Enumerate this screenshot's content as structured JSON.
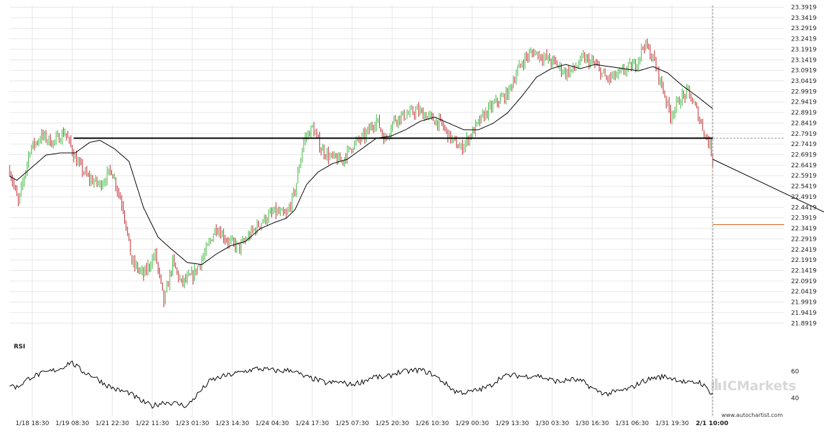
{
  "chart_data": {
    "type": "line",
    "subtype": "candlestick",
    "title": "",
    "xlabel": "",
    "ylabel": "",
    "y_ticks": [
      "23.3919",
      "23.3419",
      "23.2919",
      "23.2419",
      "23.1919",
      "23.1419",
      "23.0919",
      "23.0419",
      "22.9919",
      "22.9419",
      "22.8919",
      "22.8419",
      "22.7919",
      "22.7419",
      "22.6919",
      "22.6419",
      "22.5919",
      "22.5419",
      "22.4919",
      "22.4419",
      "22.3919",
      "22.3419",
      "22.2919",
      "22.2419",
      "22.1919",
      "22.1419",
      "22.0919",
      "22.0419",
      "21.9919",
      "21.9419",
      "21.8919"
    ],
    "x_ticks": [
      "1/18 18:30",
      "1/19 08:30",
      "1/21 22:30",
      "1/22 11:30",
      "1/23 01:30",
      "1/23 14:30",
      "1/24 04:30",
      "1/24 17:30",
      "1/25 07:30",
      "1/25 20:30",
      "1/26 10:30",
      "1/29 00:30",
      "1/29 13:30",
      "1/30 03:30",
      "1/30 16:30",
      "1/31 06:30",
      "1/31 19:30",
      "2/1 10:00"
    ],
    "ylim": [
      21.87,
      23.4
    ],
    "grid": true,
    "price_series": [
      {
        "i": 0,
        "v": 22.62
      },
      {
        "i": 6,
        "v": 22.46
      },
      {
        "i": 14,
        "v": 22.72
      },
      {
        "i": 22,
        "v": 22.78
      },
      {
        "i": 30,
        "v": 22.75
      },
      {
        "i": 38,
        "v": 22.8
      },
      {
        "i": 46,
        "v": 22.66
      },
      {
        "i": 54,
        "v": 22.58
      },
      {
        "i": 62,
        "v": 22.55
      },
      {
        "i": 70,
        "v": 22.62
      },
      {
        "i": 78,
        "v": 22.44
      },
      {
        "i": 84,
        "v": 22.18
      },
      {
        "i": 92,
        "v": 22.12
      },
      {
        "i": 100,
        "v": 22.22
      },
      {
        "i": 106,
        "v": 21.99
      },
      {
        "i": 112,
        "v": 22.18
      },
      {
        "i": 118,
        "v": 22.08
      },
      {
        "i": 126,
        "v": 22.12
      },
      {
        "i": 134,
        "v": 22.22
      },
      {
        "i": 142,
        "v": 22.35
      },
      {
        "i": 150,
        "v": 22.28
      },
      {
        "i": 158,
        "v": 22.25
      },
      {
        "i": 166,
        "v": 22.32
      },
      {
        "i": 174,
        "v": 22.38
      },
      {
        "i": 182,
        "v": 22.42
      },
      {
        "i": 190,
        "v": 22.4
      },
      {
        "i": 196,
        "v": 22.52
      },
      {
        "i": 202,
        "v": 22.76
      },
      {
        "i": 208,
        "v": 22.82
      },
      {
        "i": 214,
        "v": 22.72
      },
      {
        "i": 220,
        "v": 22.68
      },
      {
        "i": 228,
        "v": 22.66
      },
      {
        "i": 236,
        "v": 22.74
      },
      {
        "i": 244,
        "v": 22.78
      },
      {
        "i": 252,
        "v": 22.86
      },
      {
        "i": 258,
        "v": 22.76
      },
      {
        "i": 264,
        "v": 22.86
      },
      {
        "i": 272,
        "v": 22.88
      },
      {
        "i": 280,
        "v": 22.9
      },
      {
        "i": 288,
        "v": 22.87
      },
      {
        "i": 296,
        "v": 22.84
      },
      {
        "i": 304,
        "v": 22.76
      },
      {
        "i": 310,
        "v": 22.72
      },
      {
        "i": 318,
        "v": 22.8
      },
      {
        "i": 326,
        "v": 22.88
      },
      {
        "i": 334,
        "v": 22.94
      },
      {
        "i": 342,
        "v": 22.98
      },
      {
        "i": 348,
        "v": 23.08
      },
      {
        "i": 354,
        "v": 23.15
      },
      {
        "i": 360,
        "v": 23.18
      },
      {
        "i": 368,
        "v": 23.15
      },
      {
        "i": 374,
        "v": 23.13
      },
      {
        "i": 382,
        "v": 23.08
      },
      {
        "i": 388,
        "v": 23.1
      },
      {
        "i": 394,
        "v": 23.15
      },
      {
        "i": 402,
        "v": 23.12
      },
      {
        "i": 410,
        "v": 23.05
      },
      {
        "i": 418,
        "v": 23.07
      },
      {
        "i": 424,
        "v": 23.1
      },
      {
        "i": 430,
        "v": 23.12
      },
      {
        "i": 436,
        "v": 23.22
      },
      {
        "i": 442,
        "v": 23.15
      },
      {
        "i": 448,
        "v": 23.02
      },
      {
        "i": 454,
        "v": 22.88
      },
      {
        "i": 460,
        "v": 22.95
      },
      {
        "i": 466,
        "v": 22.99
      },
      {
        "i": 472,
        "v": 22.9
      },
      {
        "i": 478,
        "v": 22.78
      },
      {
        "i": 481,
        "v": 22.74
      },
      {
        "i": 483,
        "v": 22.67
      }
    ],
    "ma_series": [
      {
        "i": 0,
        "v": 22.59
      },
      {
        "i": 5,
        "v": 22.57
      },
      {
        "i": 15,
        "v": 22.63
      },
      {
        "i": 25,
        "v": 22.69
      },
      {
        "i": 35,
        "v": 22.7
      },
      {
        "i": 45,
        "v": 22.7
      },
      {
        "i": 55,
        "v": 22.75
      },
      {
        "i": 62,
        "v": 22.76
      },
      {
        "i": 72,
        "v": 22.72
      },
      {
        "i": 82,
        "v": 22.66
      },
      {
        "i": 92,
        "v": 22.44
      },
      {
        "i": 102,
        "v": 22.3
      },
      {
        "i": 110,
        "v": 22.25
      },
      {
        "i": 122,
        "v": 22.18
      },
      {
        "i": 132,
        "v": 22.17
      },
      {
        "i": 142,
        "v": 22.22
      },
      {
        "i": 152,
        "v": 22.26
      },
      {
        "i": 162,
        "v": 22.28
      },
      {
        "i": 172,
        "v": 22.34
      },
      {
        "i": 182,
        "v": 22.37
      },
      {
        "i": 190,
        "v": 22.39
      },
      {
        "i": 196,
        "v": 22.43
      },
      {
        "i": 204,
        "v": 22.55
      },
      {
        "i": 212,
        "v": 22.61
      },
      {
        "i": 222,
        "v": 22.65
      },
      {
        "i": 232,
        "v": 22.67
      },
      {
        "i": 242,
        "v": 22.72
      },
      {
        "i": 252,
        "v": 22.77
      },
      {
        "i": 262,
        "v": 22.78
      },
      {
        "i": 272,
        "v": 22.81
      },
      {
        "i": 282,
        "v": 22.85
      },
      {
        "i": 292,
        "v": 22.87
      },
      {
        "i": 302,
        "v": 22.84
      },
      {
        "i": 312,
        "v": 22.81
      },
      {
        "i": 322,
        "v": 22.81
      },
      {
        "i": 332,
        "v": 22.84
      },
      {
        "i": 342,
        "v": 22.89
      },
      {
        "i": 352,
        "v": 22.97
      },
      {
        "i": 362,
        "v": 23.06
      },
      {
        "i": 372,
        "v": 23.1
      },
      {
        "i": 382,
        "v": 23.12
      },
      {
        "i": 392,
        "v": 23.1
      },
      {
        "i": 402,
        "v": 23.12
      },
      {
        "i": 412,
        "v": 23.11
      },
      {
        "i": 422,
        "v": 23.1
      },
      {
        "i": 432,
        "v": 23.09
      },
      {
        "i": 442,
        "v": 23.11
      },
      {
        "i": 452,
        "v": 23.08
      },
      {
        "i": 462,
        "v": 23.02
      },
      {
        "i": 472,
        "v": 22.97
      },
      {
        "i": 483,
        "v": 22.91
      }
    ],
    "total_bars": 484,
    "resistance_level": 22.77,
    "resistance_start": 44,
    "forecast": {
      "from_value": 22.67,
      "to_value": 22.36,
      "bars_ahead": 43,
      "target_level": 22.36
    },
    "rsi": {
      "label": "RSI",
      "ylim": [
        30,
        75
      ],
      "ticks": [
        "60",
        "40"
      ],
      "tick_values": [
        60,
        40
      ],
      "series": [
        {
          "i": 0,
          "v": 50
        },
        {
          "i": 5,
          "v": 48
        },
        {
          "i": 15,
          "v": 56
        },
        {
          "i": 25,
          "v": 59
        },
        {
          "i": 35,
          "v": 62
        },
        {
          "i": 42,
          "v": 67
        },
        {
          "i": 50,
          "v": 60
        },
        {
          "i": 58,
          "v": 56
        },
        {
          "i": 66,
          "v": 50
        },
        {
          "i": 74,
          "v": 46
        },
        {
          "i": 82,
          "v": 44
        },
        {
          "i": 90,
          "v": 38
        },
        {
          "i": 98,
          "v": 34
        },
        {
          "i": 106,
          "v": 37
        },
        {
          "i": 114,
          "v": 36
        },
        {
          "i": 122,
          "v": 34
        },
        {
          "i": 130,
          "v": 44
        },
        {
          "i": 138,
          "v": 53
        },
        {
          "i": 146,
          "v": 56
        },
        {
          "i": 154,
          "v": 58
        },
        {
          "i": 162,
          "v": 60
        },
        {
          "i": 170,
          "v": 62
        },
        {
          "i": 178,
          "v": 61
        },
        {
          "i": 186,
          "v": 60
        },
        {
          "i": 194,
          "v": 61
        },
        {
          "i": 202,
          "v": 56
        },
        {
          "i": 210,
          "v": 54
        },
        {
          "i": 218,
          "v": 51
        },
        {
          "i": 226,
          "v": 52
        },
        {
          "i": 234,
          "v": 50
        },
        {
          "i": 242,
          "v": 52
        },
        {
          "i": 250,
          "v": 56
        },
        {
          "i": 258,
          "v": 55
        },
        {
          "i": 266,
          "v": 59
        },
        {
          "i": 274,
          "v": 60
        },
        {
          "i": 282,
          "v": 61
        },
        {
          "i": 290,
          "v": 58
        },
        {
          "i": 298,
          "v": 52
        },
        {
          "i": 306,
          "v": 45
        },
        {
          "i": 314,
          "v": 44
        },
        {
          "i": 322,
          "v": 46
        },
        {
          "i": 330,
          "v": 49
        },
        {
          "i": 338,
          "v": 56
        },
        {
          "i": 346,
          "v": 57
        },
        {
          "i": 354,
          "v": 56
        },
        {
          "i": 362,
          "v": 57
        },
        {
          "i": 370,
          "v": 54
        },
        {
          "i": 378,
          "v": 52
        },
        {
          "i": 386,
          "v": 54
        },
        {
          "i": 394,
          "v": 52
        },
        {
          "i": 402,
          "v": 46
        },
        {
          "i": 410,
          "v": 43
        },
        {
          "i": 418,
          "v": 45
        },
        {
          "i": 426,
          "v": 47
        },
        {
          "i": 434,
          "v": 52
        },
        {
          "i": 442,
          "v": 55
        },
        {
          "i": 450,
          "v": 56
        },
        {
          "i": 458,
          "v": 54
        },
        {
          "i": 466,
          "v": 51
        },
        {
          "i": 474,
          "v": 52
        },
        {
          "i": 480,
          "v": 46
        },
        {
          "i": 483,
          "v": 43
        }
      ]
    }
  },
  "watermark": {
    "brand": "ICMarkets",
    "url": "www.autochartist.com"
  },
  "colors": {
    "bull": "#3fb83f",
    "bear": "#c0262c",
    "ma": "#000000",
    "resistance": "#000000",
    "target": "#e0601a",
    "grid": "#e6e6e6",
    "watermark": "#d8d8d8"
  }
}
